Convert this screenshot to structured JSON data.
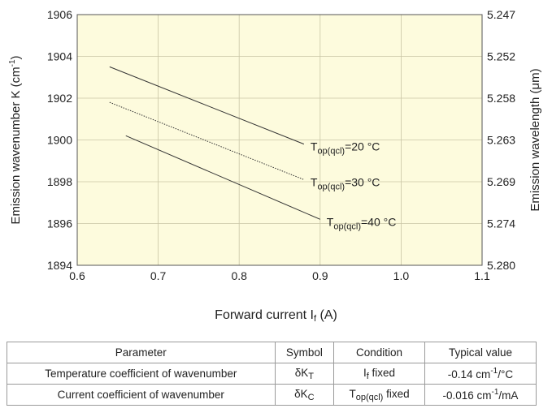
{
  "chart_data": {
    "type": "line",
    "xlabel_main": "Forward current I",
    "xlabel_sub": "f",
    "xlabel_unit": " (A)",
    "ylabel": "Emission wavenumber K (cm-1)",
    "ylabel_main": "Emission wavenumber K (cm",
    "ylabel_sup": "-1",
    "ylabel_close": ")",
    "y2label": "Emission wavelength (μm)",
    "xlim": [
      0.6,
      1.1
    ],
    "ylim": [
      1894,
      1906
    ],
    "x_ticks": [
      "0.6",
      "0.7",
      "0.8",
      "0.9",
      "1.0",
      "1.1"
    ],
    "y_ticks": [
      "1894",
      "1896",
      "1898",
      "1900",
      "1902",
      "1904",
      "1906"
    ],
    "y2_ticks": [
      "5.280",
      "5.274",
      "5.269",
      "5.263",
      "5.258",
      "5.252",
      "5.247"
    ],
    "grid": true,
    "background_color": "#fdfbdd",
    "series": [
      {
        "name_main": "T",
        "name_sub": "op(qcl)",
        "name_rest": "=20 °C",
        "style": "solid",
        "x": [
          0.64,
          0.88
        ],
        "y": [
          1903.5,
          1899.8
        ]
      },
      {
        "name_main": "T",
        "name_sub": "op(qcl)",
        "name_rest": "=30 °C",
        "style": "dotted",
        "x": [
          0.64,
          0.88
        ],
        "y": [
          1901.8,
          1898.1
        ]
      },
      {
        "name_main": "T",
        "name_sub": "op(qcl)",
        "name_rest": "=40 °C",
        "style": "solid",
        "x": [
          0.66,
          0.9
        ],
        "y": [
          1900.2,
          1896.2
        ]
      }
    ]
  },
  "table": {
    "headers": [
      "Parameter",
      "Symbol",
      "Condition",
      "Typical value"
    ],
    "rows": [
      {
        "parameter": "Temperature coefficient of wavenumber",
        "symbol_main": "δK",
        "symbol_sub": "T",
        "condition_main": "I",
        "condition_sub": "f",
        "condition_rest": " fixed",
        "value_main": "-0.14 cm",
        "value_sup": "-1",
        "value_rest": "/°C"
      },
      {
        "parameter": "Current coefficient of wavenumber",
        "symbol_main": "δK",
        "symbol_sub": "C",
        "condition_main": "T",
        "condition_sub": "op(qcl)",
        "condition_rest": " fixed",
        "value_main": "-0.016 cm",
        "value_sup": "-1",
        "value_rest": "/mA"
      }
    ]
  }
}
